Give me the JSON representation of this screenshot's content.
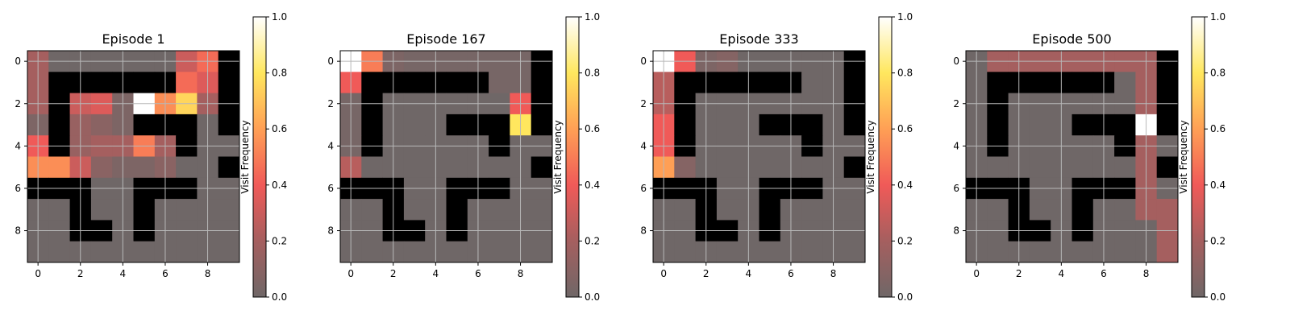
{
  "chart_data": [
    {
      "type": "heatmap",
      "title": "Episode 1",
      "colorbar": {
        "label": "Visit Frequency",
        "range": [
          0,
          1
        ],
        "ticks": [
          "0.0",
          "0.2",
          "0.4",
          "0.6",
          "0.8",
          "1.0"
        ]
      },
      "x_ticks": [
        "0",
        "2",
        "4",
        "6",
        "8"
      ],
      "y_ticks": [
        "0",
        "2",
        "4",
        "6",
        "8"
      ],
      "grid": true,
      "colormap": "hot-alpha",
      "wall_color": "#000000",
      "walls": [
        [
          0,
          0,
          0,
          0,
          0,
          0,
          0,
          0,
          0,
          1
        ],
        [
          0,
          1,
          1,
          1,
          1,
          1,
          1,
          0,
          0,
          1
        ],
        [
          0,
          1,
          0,
          0,
          0,
          0,
          0,
          0,
          0,
          1
        ],
        [
          0,
          1,
          0,
          0,
          0,
          1,
          1,
          1,
          0,
          1
        ],
        [
          0,
          1,
          0,
          0,
          0,
          0,
          0,
          1,
          0,
          0
        ],
        [
          0,
          0,
          0,
          0,
          0,
          0,
          0,
          0,
          0,
          1
        ],
        [
          1,
          1,
          1,
          0,
          0,
          1,
          1,
          1,
          0,
          0
        ],
        [
          0,
          0,
          1,
          0,
          0,
          1,
          0,
          0,
          0,
          0
        ],
        [
          0,
          0,
          1,
          1,
          0,
          1,
          0,
          0,
          0,
          0
        ],
        [
          0,
          0,
          0,
          0,
          0,
          0,
          0,
          0,
          0,
          0
        ]
      ],
      "values": [
        [
          0.2,
          0,
          0,
          0,
          0,
          0,
          0,
          0.3,
          0.45,
          0
        ],
        [
          0.2,
          0,
          0,
          0,
          0,
          0,
          0,
          0.45,
          0.35,
          0
        ],
        [
          0.2,
          0,
          0.3,
          0.35,
          0.05,
          1.0,
          0.55,
          0.75,
          0.2,
          0
        ],
        [
          0.05,
          0,
          0.15,
          0.1,
          0.05,
          0,
          0,
          0,
          0,
          0
        ],
        [
          0.4,
          0,
          0.15,
          0.2,
          0.2,
          0.5,
          0.2,
          0,
          0,
          0
        ],
        [
          0.55,
          0.55,
          0.3,
          0.1,
          0.05,
          0.05,
          0.1,
          0,
          0,
          0
        ],
        [
          0,
          0,
          0,
          0,
          0,
          0,
          0,
          0,
          0,
          0
        ],
        [
          0,
          0,
          0,
          0,
          0,
          0,
          0,
          0,
          0,
          0
        ],
        [
          0,
          0,
          0,
          0,
          0,
          0,
          0,
          0,
          0,
          0
        ],
        [
          0,
          0,
          0,
          0,
          0,
          0,
          0,
          0,
          0,
          0
        ]
      ]
    },
    {
      "type": "heatmap",
      "title": "Episode 167",
      "colorbar": {
        "label": "Visit Frequency",
        "range": [
          0,
          1
        ],
        "ticks": [
          "0.0",
          "0.2",
          "0.4",
          "0.6",
          "0.8",
          "1.0"
        ]
      },
      "x_ticks": [
        "0",
        "2",
        "4",
        "6",
        "8"
      ],
      "y_ticks": [
        "0",
        "2",
        "4",
        "6",
        "8"
      ],
      "grid": true,
      "colormap": "hot-alpha",
      "wall_color": "#000000",
      "walls": [
        [
          0,
          0,
          0,
          0,
          0,
          0,
          0,
          0,
          0,
          1
        ],
        [
          0,
          1,
          1,
          1,
          1,
          1,
          1,
          0,
          0,
          1
        ],
        [
          0,
          1,
          0,
          0,
          0,
          0,
          0,
          0,
          0,
          1
        ],
        [
          0,
          1,
          0,
          0,
          0,
          1,
          1,
          1,
          0,
          1
        ],
        [
          0,
          1,
          0,
          0,
          0,
          0,
          0,
          1,
          0,
          0
        ],
        [
          0,
          0,
          0,
          0,
          0,
          0,
          0,
          0,
          0,
          1
        ],
        [
          1,
          1,
          1,
          0,
          0,
          1,
          1,
          1,
          0,
          0
        ],
        [
          0,
          0,
          1,
          0,
          0,
          1,
          0,
          0,
          0,
          0
        ],
        [
          0,
          0,
          1,
          1,
          0,
          1,
          0,
          0,
          0,
          0
        ],
        [
          0,
          0,
          0,
          0,
          0,
          0,
          0,
          0,
          0,
          0
        ]
      ],
      "values": [
        [
          1.0,
          0.5,
          0.05,
          0.03,
          0.03,
          0.03,
          0.03,
          0.03,
          0.03,
          0
        ],
        [
          0.4,
          0,
          0,
          0,
          0,
          0,
          0,
          0.03,
          0.03,
          0
        ],
        [
          0.03,
          0,
          0,
          0,
          0,
          0,
          0,
          0,
          0.4,
          0
        ],
        [
          0.03,
          0,
          0,
          0,
          0,
          0,
          0,
          0,
          0.8,
          0
        ],
        [
          0.03,
          0,
          0,
          0,
          0,
          0,
          0,
          0,
          0,
          0
        ],
        [
          0.25,
          0,
          0,
          0,
          0,
          0,
          0,
          0,
          0,
          0
        ],
        [
          0,
          0,
          0,
          0,
          0,
          0,
          0,
          0,
          0,
          0
        ],
        [
          0,
          0,
          0,
          0,
          0,
          0,
          0,
          0,
          0,
          0
        ],
        [
          0,
          0,
          0,
          0,
          0,
          0,
          0,
          0,
          0,
          0
        ],
        [
          0,
          0,
          0,
          0,
          0,
          0,
          0,
          0,
          0,
          0
        ]
      ]
    },
    {
      "type": "heatmap",
      "title": "Episode 333",
      "colorbar": {
        "label": "Visit Frequency",
        "range": [
          0,
          1
        ],
        "ticks": [
          "0.0",
          "0.2",
          "0.4",
          "0.6",
          "0.8",
          "1.0"
        ]
      },
      "x_ticks": [
        "0",
        "2",
        "4",
        "6",
        "8"
      ],
      "y_ticks": [
        "0",
        "2",
        "4",
        "6",
        "8"
      ],
      "grid": true,
      "colormap": "hot-alpha",
      "wall_color": "#000000",
      "walls": [
        [
          0,
          0,
          0,
          0,
          0,
          0,
          0,
          0,
          0,
          1
        ],
        [
          0,
          1,
          1,
          1,
          1,
          1,
          1,
          0,
          0,
          1
        ],
        [
          0,
          1,
          0,
          0,
          0,
          0,
          0,
          0,
          0,
          1
        ],
        [
          0,
          1,
          0,
          0,
          0,
          1,
          1,
          1,
          0,
          1
        ],
        [
          0,
          1,
          0,
          0,
          0,
          0,
          0,
          1,
          0,
          0
        ],
        [
          0,
          0,
          0,
          0,
          0,
          0,
          0,
          0,
          0,
          1
        ],
        [
          1,
          1,
          1,
          0,
          0,
          1,
          1,
          1,
          0,
          0
        ],
        [
          0,
          0,
          1,
          0,
          0,
          1,
          0,
          0,
          0,
          0
        ],
        [
          0,
          0,
          1,
          1,
          0,
          1,
          0,
          0,
          0,
          0
        ],
        [
          0,
          0,
          0,
          0,
          0,
          0,
          0,
          0,
          0,
          0
        ]
      ],
      "values": [
        [
          1.0,
          0.4,
          0.05,
          0.08,
          0,
          0,
          0,
          0,
          0,
          0
        ],
        [
          0.25,
          0,
          0,
          0,
          0,
          0,
          0,
          0,
          0,
          0
        ],
        [
          0.25,
          0,
          0,
          0,
          0,
          0,
          0,
          0,
          0,
          0
        ],
        [
          0.4,
          0,
          0,
          0,
          0,
          0,
          0,
          0,
          0,
          0
        ],
        [
          0.4,
          0,
          0,
          0,
          0,
          0,
          0,
          0,
          0,
          0
        ],
        [
          0.6,
          0.08,
          0,
          0,
          0,
          0,
          0,
          0,
          0,
          0
        ],
        [
          0,
          0,
          0,
          0,
          0,
          0,
          0,
          0,
          0,
          0
        ],
        [
          0,
          0,
          0,
          0,
          0,
          0,
          0,
          0,
          0,
          0
        ],
        [
          0,
          0,
          0,
          0,
          0,
          0,
          0,
          0,
          0,
          0
        ],
        [
          0,
          0,
          0,
          0,
          0,
          0,
          0,
          0,
          0,
          0
        ]
      ]
    },
    {
      "type": "heatmap",
      "title": "Episode 500",
      "colorbar": {
        "label": "Visit Frequency",
        "range": [
          0,
          1
        ],
        "ticks": [
          "0.0",
          "0.2",
          "0.4",
          "0.6",
          "0.8",
          "1.0"
        ]
      },
      "x_ticks": [
        "0",
        "2",
        "4",
        "6",
        "8"
      ],
      "y_ticks": [
        "0",
        "2",
        "4",
        "6",
        "8"
      ],
      "grid": true,
      "colormap": "hot-alpha",
      "wall_color": "#000000",
      "walls": [
        [
          0,
          0,
          0,
          0,
          0,
          0,
          0,
          0,
          0,
          1
        ],
        [
          0,
          1,
          1,
          1,
          1,
          1,
          1,
          0,
          0,
          1
        ],
        [
          0,
          1,
          0,
          0,
          0,
          0,
          0,
          0,
          0,
          1
        ],
        [
          0,
          1,
          0,
          0,
          0,
          1,
          1,
          1,
          0,
          1
        ],
        [
          0,
          1,
          0,
          0,
          0,
          0,
          0,
          1,
          0,
          0
        ],
        [
          0,
          0,
          0,
          0,
          0,
          0,
          0,
          0,
          0,
          1
        ],
        [
          1,
          1,
          1,
          0,
          0,
          1,
          1,
          1,
          0,
          0
        ],
        [
          0,
          0,
          1,
          0,
          0,
          1,
          0,
          0,
          0,
          0
        ],
        [
          0,
          0,
          1,
          1,
          0,
          1,
          0,
          0,
          0,
          0
        ],
        [
          0,
          0,
          0,
          0,
          0,
          0,
          0,
          0,
          0,
          0
        ]
      ],
      "values": [
        [
          0,
          0.2,
          0.2,
          0.2,
          0.2,
          0.2,
          0.2,
          0.2,
          0.2,
          0
        ],
        [
          0,
          0,
          0,
          0,
          0,
          0,
          0,
          0,
          0.2,
          0
        ],
        [
          0,
          0,
          0,
          0,
          0,
          0,
          0,
          0,
          0.2,
          0
        ],
        [
          0,
          0,
          0,
          0,
          0,
          0,
          0,
          0,
          1.0,
          0
        ],
        [
          0,
          0,
          0,
          0,
          0,
          0,
          0,
          0,
          0.2,
          0
        ],
        [
          0,
          0,
          0,
          0,
          0,
          0,
          0,
          0,
          0.2,
          0
        ],
        [
          0,
          0,
          0,
          0,
          0,
          0,
          0,
          0,
          0.2,
          0
        ],
        [
          0,
          0,
          0,
          0,
          0,
          0,
          0,
          0,
          0.2,
          0.2
        ],
        [
          0,
          0,
          0,
          0,
          0,
          0,
          0,
          0,
          0,
          0.2
        ],
        [
          0,
          0,
          0,
          0,
          0,
          0,
          0,
          0,
          0,
          0.2
        ]
      ]
    }
  ]
}
